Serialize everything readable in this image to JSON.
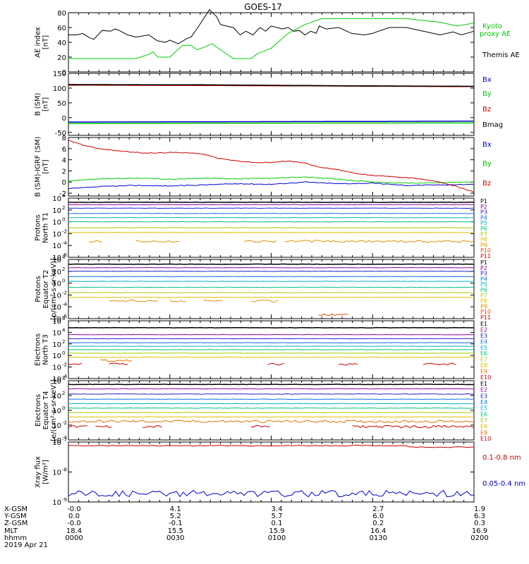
{
  "title": "GOES-17",
  "chart_data": [
    {
      "type": "line",
      "ylabel": "AE index\n[nT]",
      "ylim": [
        0,
        80
      ],
      "yticks": [
        "0",
        "20",
        "40",
        "60",
        "80"
      ],
      "x": [
        0,
        8,
        13,
        21,
        25,
        30,
        38,
        42,
        46,
        50,
        53,
        57,
        63,
        67,
        71,
        75,
        77,
        79,
        83,
        88,
        92,
        96,
        100,
        104,
        109,
        113,
        117,
        121,
        125,
        130,
        134,
        138,
        142,
        146,
        150,
        154,
        158,
        163,
        167,
        171,
        175,
        179,
        183,
        188,
        192,
        196,
        200,
        204,
        208,
        213,
        217,
        221,
        225,
        229,
        233,
        238,
        242,
        246,
        250,
        254,
        258,
        263,
        267,
        271,
        275,
        279,
        283,
        288,
        292,
        296,
        300,
        304,
        308,
        313,
        317,
        321,
        325,
        329,
        333,
        338,
        342,
        346,
        350,
        354,
        358,
        363,
        367,
        371,
        375,
        379,
        383,
        388,
        392,
        396,
        400,
        404,
        408,
        413,
        417,
        421,
        425,
        429,
        433,
        438,
        442,
        446,
        450,
        454,
        458,
        463,
        467,
        471,
        475,
        479,
        483,
        488,
        492,
        496,
        500,
        504,
        508,
        513,
        517,
        521,
        525,
        529,
        533,
        538,
        542,
        546,
        550,
        554,
        558,
        563,
        567,
        571,
        575,
        579,
        583,
        588,
        592,
        596,
        600,
        604,
        608,
        613,
        617,
        621,
        625,
        629,
        633,
        638,
        642,
        646,
        650,
        654,
        658,
        663,
        667,
        671,
        675,
        679,
        683,
        688,
        692,
        696,
        700,
        704,
        708,
        713,
        717,
        721,
        725,
        729,
        733,
        738,
        742,
        746,
        750,
        754,
        758,
        763,
        767,
        771,
        775,
        779,
        783,
        788,
        792,
        796,
        800,
        804,
        808,
        813,
        817,
        821,
        825,
        829,
        833,
        838,
        842,
        846,
        850,
        854,
        858,
        863,
        867,
        871,
        875,
        879,
        883,
        888,
        892,
        896,
        900,
        904,
        908,
        913,
        917,
        921,
        925,
        929,
        933,
        938,
        942,
        946,
        950,
        954,
        958,
        963,
        967,
        971,
        975,
        979,
        983,
        988,
        992,
        996,
        1000,
        1004,
        1008,
        1013,
        1017,
        1021,
        1025,
        1029,
        1033,
        1038,
        1042,
        1046,
        1050,
        1054,
        1058,
        1063,
        1067,
        1071,
        1075,
        1079,
        1083,
        1088,
        1092,
        1096,
        1100,
        1104,
        1108,
        1113,
        1117,
        1121,
        1125,
        1129,
        1133,
        1138,
        1142,
        1146,
        1150,
        1154,
        1158,
        1163,
        1167,
        1171,
        1175,
        1179,
        1183,
        1188,
        1192,
        1196,
        1200
      ],
      "series": [
        {
          "name": "Themis AE",
          "color": "#000000",
          "points": [
            [
              0,
              50
            ],
            [
              25,
              50
            ],
            [
              42,
              52
            ],
            [
              63,
              46
            ],
            [
              75,
              44
            ],
            [
              100,
              56
            ],
            [
              125,
              55
            ],
            [
              138,
              58
            ],
            [
              150,
              56
            ],
            [
              175,
              50
            ],
            [
              200,
              47
            ],
            [
              238,
              50
            ],
            [
              263,
              42
            ],
            [
              288,
              40
            ],
            [
              300,
              43
            ],
            [
              325,
              38
            ],
            [
              350,
              45
            ],
            [
              363,
              47
            ],
            [
              383,
              60
            ],
            [
              400,
              72
            ],
            [
              417,
              84
            ],
            [
              438,
              75
            ],
            [
              450,
              64
            ],
            [
              467,
              62
            ],
            [
              488,
              60
            ],
            [
              508,
              50
            ],
            [
              525,
              55
            ],
            [
              546,
              50
            ],
            [
              567,
              60
            ],
            [
              583,
              55
            ],
            [
              600,
              62
            ],
            [
              617,
              60
            ],
            [
              633,
              58
            ],
            [
              650,
              60
            ],
            [
              667,
              55
            ],
            [
              683,
              56
            ],
            [
              700,
              50
            ],
            [
              717,
              55
            ],
            [
              733,
              52
            ],
            [
              742,
              62
            ],
            [
              763,
              58
            ],
            [
              800,
              60
            ],
            [
              838,
              52
            ],
            [
              875,
              50
            ],
            [
              900,
              52
            ],
            [
              917,
              55
            ],
            [
              950,
              60
            ],
            [
              1000,
              60
            ],
            [
              1050,
              55
            ],
            [
              1100,
              50
            ],
            [
              1138,
              54
            ],
            [
              1163,
              50
            ],
            [
              1200,
              55
            ]
          ]
        },
        {
          "name": "Kyoto proxy AE",
          "color": "#00cc00",
          "points": [
            [
              0,
              18
            ],
            [
              200,
              18
            ],
            [
              240,
              24
            ],
            [
              250,
              27
            ],
            [
              265,
              20
            ],
            [
              300,
              20
            ],
            [
              338,
              36
            ],
            [
              363,
              36
            ],
            [
              380,
              30
            ],
            [
              400,
              33
            ],
            [
              425,
              38
            ],
            [
              450,
              30
            ],
            [
              475,
              22
            ],
            [
              488,
              18
            ],
            [
              540,
              18
            ],
            [
              560,
              25
            ],
            [
              600,
              32
            ],
            [
              650,
              52
            ],
            [
              700,
              64
            ],
            [
              750,
              72
            ],
            [
              1000,
              72
            ],
            [
              1100,
              67
            ],
            [
              1150,
              62
            ],
            [
              1200,
              66
            ]
          ]
        }
      ],
      "legend": [
        "Kyoto proxy AE",
        "Themis AE"
      ]
    },
    {
      "type": "line",
      "ylabel": "B (SM)\n[nT]",
      "ylim": [
        -60,
        150
      ],
      "yticks": [
        "-50",
        "0",
        "50",
        "100",
        "150"
      ],
      "series": [
        {
          "name": "Bx",
          "color": "#0000cc",
          "points": [
            [
              0,
              -15
            ],
            [
              400,
              -14
            ],
            [
              800,
              -13
            ],
            [
              1200,
              -12
            ]
          ]
        },
        {
          "name": "By",
          "color": "#00cc00",
          "points": [
            [
              0,
              -20
            ],
            [
              400,
              -19
            ],
            [
              800,
              -18
            ],
            [
              1200,
              -18
            ]
          ]
        },
        {
          "name": "Bz",
          "color": "#cc0000",
          "points": [
            [
              0,
              110
            ],
            [
              400,
              109
            ],
            [
              800,
              107
            ],
            [
              1200,
              105
            ]
          ]
        },
        {
          "name": "Bmag",
          "color": "#000000",
          "points": [
            [
              0,
              112
            ],
            [
              400,
              111
            ],
            [
              800,
              108
            ],
            [
              1200,
              106
            ]
          ]
        }
      ],
      "legend": [
        "Bx",
        "By",
        "Bz",
        "Bmag"
      ]
    },
    {
      "type": "line",
      "ylabel": "B (SM)-IGRF (SM)\n[nT]",
      "ylim": [
        -2.5,
        8
      ],
      "yticks": [
        "-2",
        "0",
        "2",
        "4",
        "6",
        "8"
      ],
      "series": [
        {
          "name": "Bx",
          "color": "#0000cc",
          "points": [
            [
              0,
              -1.2
            ],
            [
              100,
              -0.8
            ],
            [
              200,
              -0.6
            ],
            [
              300,
              -0.7
            ],
            [
              400,
              -0.5
            ],
            [
              500,
              -0.3
            ],
            [
              600,
              -0.4
            ],
            [
              700,
              0.0
            ],
            [
              800,
              -0.3
            ],
            [
              900,
              -0.2
            ],
            [
              1000,
              -0.6
            ],
            [
              1100,
              -0.5
            ],
            [
              1200,
              -0.4
            ]
          ]
        },
        {
          "name": "By",
          "color": "#00cc00",
          "points": [
            [
              0,
              0.2
            ],
            [
              100,
              0.6
            ],
            [
              200,
              0.7
            ],
            [
              300,
              0.5
            ],
            [
              400,
              0.7
            ],
            [
              500,
              0.6
            ],
            [
              600,
              0.7
            ],
            [
              700,
              0.9
            ],
            [
              800,
              0.5
            ],
            [
              900,
              0.0
            ],
            [
              1000,
              -0.2
            ],
            [
              1100,
              -0.1
            ],
            [
              1200,
              0.0
            ]
          ]
        },
        {
          "name": "Bz",
          "color": "#cc0000",
          "points": [
            [
              0,
              7.5
            ],
            [
              50,
              6.5
            ],
            [
              100,
              5.9
            ],
            [
              150,
              5.6
            ],
            [
              200,
              5.3
            ],
            [
              250,
              5.2
            ],
            [
              300,
              5.3
            ],
            [
              350,
              5.3
            ],
            [
              400,
              5.0
            ],
            [
              450,
              4.2
            ],
            [
              500,
              3.8
            ],
            [
              550,
              3.5
            ],
            [
              600,
              3.5
            ],
            [
              650,
              3.8
            ],
            [
              700,
              3.4
            ],
            [
              750,
              2.6
            ],
            [
              800,
              2.2
            ],
            [
              850,
              1.5
            ],
            [
              900,
              1.2
            ],
            [
              950,
              1.0
            ],
            [
              1000,
              0.8
            ],
            [
              1050,
              0.5
            ],
            [
              1100,
              0.0
            ],
            [
              1150,
              -0.8
            ],
            [
              1200,
              -1.8
            ]
          ]
        }
      ],
      "legend": [
        "Bx",
        "By",
        "Bz"
      ]
    },
    {
      "type": "line",
      "ylabel": "Protons\nNorth T1",
      "ylog": [
        -6,
        4
      ],
      "yticks": [
        "10^-6",
        "10^-4",
        "10^-2",
        "10^0",
        "10^2",
        "10^4"
      ],
      "legend": [
        "P1",
        "P2",
        "P3",
        "P4",
        "P5",
        "P6",
        "P7",
        "P8",
        "P9",
        "P10",
        "P11"
      ]
    },
    {
      "type": "line",
      "ylabel": "Protons\nEquator T2\n[p/(cm²-s-sr-keV)]",
      "ylog": [
        -6,
        4
      ],
      "yticks": [
        "10^-6",
        "10^-4",
        "10^-2",
        "10^0",
        "10^2",
        "10^4"
      ],
      "legend": [
        "P1",
        "P2",
        "P3",
        "P4",
        "P5",
        "P6",
        "P7",
        "P8",
        "P9",
        "P10",
        "P11"
      ]
    },
    {
      "type": "line",
      "ylabel": "Electrons\nNorth T3",
      "ylog": [
        -4,
        6
      ],
      "yticks": [
        "10^-4",
        "10^-2",
        "10^0",
        "10^2",
        "10^4",
        "10^6"
      ],
      "legend": [
        "E1",
        "E2",
        "E3",
        "E4",
        "E5",
        "E6",
        "E7",
        "E8",
        "E9",
        "E10"
      ]
    },
    {
      "type": "line",
      "ylabel": "Electrons\nEquator T4\n[e/(cm²-s-sr-keV)]",
      "ylog": [
        -4,
        4
      ],
      "yticks": [
        "10^-4",
        "10^-2",
        "10^0",
        "10^2",
        "10^4"
      ],
      "legend": [
        "E1",
        "E2",
        "E3",
        "E4",
        "E5",
        "E6",
        "E7",
        "E8",
        "E9",
        "E10"
      ]
    },
    {
      "type": "line",
      "ylabel": "Xray flux\n[W/m²]",
      "ylog": [
        -9,
        -7
      ],
      "yticks": [
        "10^-9",
        "10^-8",
        "10^-7"
      ],
      "series": [
        {
          "name": "0.1-0.8 nm",
          "color": "#cc0000"
        },
        {
          "name": "0.05-0.4 nm",
          "color": "#0000cc"
        }
      ],
      "legend": [
        "0.1-0.8 nm",
        "0.05-0.4 nm"
      ]
    }
  ],
  "legend_colors": {
    "P": [
      "#000000",
      "#9000a0",
      "#2020d0",
      "#1070f0",
      "#00b0d0",
      "#00c080",
      "#a0d000",
      "#e0c000",
      "#e09000",
      "#e05000",
      "#d00000"
    ],
    "E": [
      "#000000",
      "#9000a0",
      "#2020d0",
      "#1070f0",
      "#00b0d0",
      "#00c080",
      "#a0d000",
      "#e0c000",
      "#e07000",
      "#d00000"
    ]
  },
  "x_axis": {
    "row_labels": [
      "X-GSM",
      "Y-GSM",
      "Z-GSM",
      "MLT",
      "hhmm",
      "2019 Apr 21"
    ],
    "columns": [
      {
        "x_gsm": "-0.0",
        "y_gsm": "0.0",
        "z_gsm": "-0.0",
        "mlt": "18.4",
        "hhmm": "0000"
      },
      {
        "x_gsm": "4.1",
        "y_gsm": "5.2",
        "z_gsm": "-0.1",
        "mlt": "15.5",
        "hhmm": "0030"
      },
      {
        "x_gsm": "3.4",
        "y_gsm": "5.7",
        "z_gsm": "0.1",
        "mlt": "15.9",
        "hhmm": "0100"
      },
      {
        "x_gsm": "2.7",
        "y_gsm": "6.0",
        "z_gsm": "0.2",
        "mlt": "16.4",
        "hhmm": "0130"
      },
      {
        "x_gsm": "1.9",
        "y_gsm": "6.3",
        "z_gsm": "0.3",
        "mlt": "16.9",
        "hhmm": "0200"
      }
    ]
  }
}
